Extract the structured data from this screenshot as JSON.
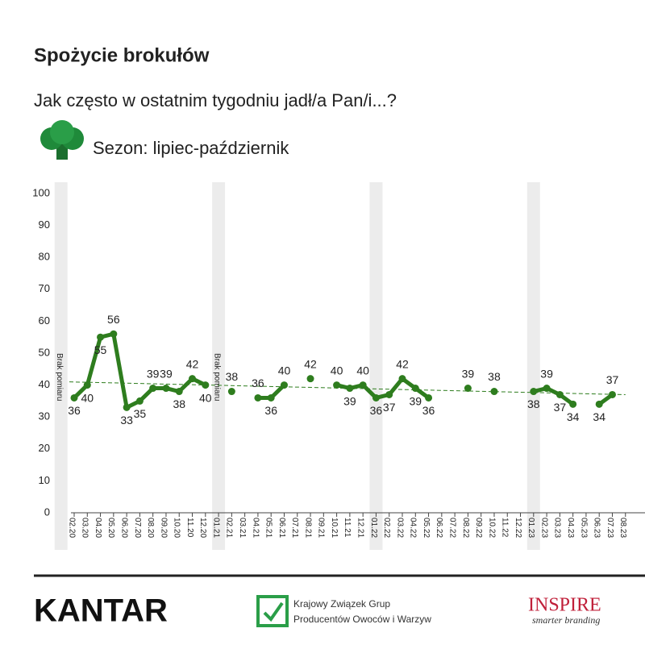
{
  "chart_data": {
    "type": "line",
    "title": "Spożycie brokułów",
    "subtitle": "Jak często w ostatnim tygodniu jadł/a Pan/i...?",
    "annotation": "Sezon: lipiec-październik",
    "no_data_label": "Brak pomiaru",
    "categories": [
      "02.20",
      "03.20",
      "04.20",
      "05.20",
      "06.20",
      "07.20",
      "08.20",
      "09.20",
      "10.20",
      "11.20",
      "12.20",
      "01.21",
      "02.21",
      "03.21",
      "04.21",
      "05.21",
      "06.21",
      "07.21",
      "08.21",
      "09.21",
      "10.21",
      "11.21",
      "12.21",
      "01.22",
      "02.22",
      "03.22",
      "04.22",
      "05.22",
      "06.22",
      "07.22",
      "08.22",
      "09.22",
      "10.22",
      "11.22",
      "12.22",
      "01.23",
      "02.23",
      "03.23",
      "04.23",
      "05.23",
      "06.23",
      "07.23",
      "08.23"
    ],
    "series": [
      {
        "color": "#2e7d1e",
        "values": [
          36,
          40,
          55,
          56,
          33,
          35,
          39,
          39,
          38,
          42,
          40,
          null,
          38,
          null,
          36,
          36,
          40,
          null,
          42,
          null,
          40,
          39,
          40,
          36,
          37,
          42,
          39,
          36,
          null,
          null,
          39,
          null,
          38,
          null,
          null,
          38,
          39,
          37,
          34,
          null,
          34,
          37,
          null
        ]
      }
    ],
    "trend": {
      "color": "#2e7d1e",
      "values": [
        41,
        37
      ]
    },
    "ylim": [
      0,
      100
    ],
    "yticks": [
      0,
      10,
      20,
      30,
      40,
      50,
      60,
      70,
      80,
      90,
      100
    ],
    "grid": false
  },
  "footer": {
    "logos": [
      "KANTAR",
      "Krajowy Związek Grup",
      "Producentów Owoców i Warzyw",
      "INSPIRE",
      "smarter branding"
    ]
  }
}
